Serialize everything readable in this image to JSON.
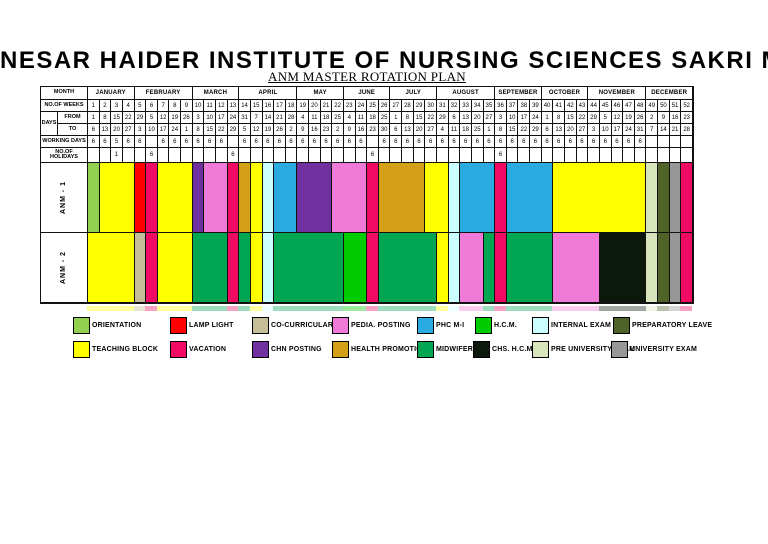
{
  "title": "NESAR HAIDER INSTITUTE OF NURSING SCIENCES SAKRI MADHUBANI",
  "subtitle": "ANM MASTER ROTATION PLAN",
  "table": {
    "row_labels": {
      "month": "MONTH",
      "weeks": "NO.OF WEEKS",
      "days": "DAYS",
      "from": "FROM",
      "to": "TO",
      "working": "WORKING DAYS",
      "holidays": "NO.OF HOLIDAYS"
    },
    "months": [
      {
        "name": "JANUARY",
        "weeks": 4
      },
      {
        "name": "FEBRUARY",
        "weeks": 5
      },
      {
        "name": "MARCH",
        "weeks": 4
      },
      {
        "name": "APRIL",
        "weeks": 5
      },
      {
        "name": "MAY",
        "weeks": 4
      },
      {
        "name": "JUNE",
        "weeks": 4
      },
      {
        "name": "JULY",
        "weeks": 4
      },
      {
        "name": "AUGUST",
        "weeks": 5
      },
      {
        "name": "SEPTEMBER",
        "weeks": 4
      },
      {
        "name": "OCTOBER",
        "weeks": 4
      },
      {
        "name": "NOVEMBER",
        "weeks": 5
      },
      {
        "name": "DECEMBER",
        "weeks": 4
      }
    ],
    "week_numbers": [
      1,
      2,
      3,
      4,
      5,
      6,
      7,
      8,
      9,
      10,
      11,
      12,
      13,
      14,
      15,
      16,
      17,
      18,
      19,
      20,
      21,
      22,
      23,
      24,
      25,
      26,
      27,
      28,
      29,
      30,
      31,
      32,
      33,
      34,
      35,
      36,
      37,
      38,
      39,
      40,
      41,
      42,
      43,
      44,
      45,
      46,
      47,
      48,
      49,
      50,
      51,
      52
    ],
    "from_dates": [
      1,
      8,
      15,
      22,
      29,
      5,
      12,
      19,
      26,
      3,
      10,
      17,
      24,
      31,
      7,
      14,
      21,
      28,
      4,
      11,
      18,
      25,
      4,
      11,
      18,
      25,
      1,
      8,
      15,
      22,
      29,
      6,
      13,
      20,
      27,
      3,
      10,
      17,
      24,
      1,
      8,
      15,
      22,
      29,
      5,
      12,
      19,
      26,
      2,
      9,
      16,
      23
    ],
    "to_dates": [
      6,
      13,
      20,
      27,
      3,
      10,
      17,
      24,
      1,
      8,
      15,
      22,
      29,
      5,
      12,
      19,
      26,
      2,
      9,
      16,
      23,
      2,
      9,
      16,
      23,
      30,
      6,
      13,
      20,
      27,
      4,
      11,
      18,
      25,
      1,
      8,
      15,
      22,
      29,
      6,
      13,
      20,
      27,
      3,
      10,
      17,
      24,
      31,
      7,
      14,
      21,
      28
    ],
    "working_days": [
      "6",
      "6",
      "5",
      "6",
      "6",
      "",
      "6",
      "6",
      "6",
      "6",
      "6",
      "6",
      "",
      "6",
      "6",
      "6",
      "6",
      "6",
      "6",
      "6",
      "6",
      "6",
      "6",
      "6",
      "",
      "6",
      "6",
      "6",
      "6",
      "6",
      "6",
      "6",
      "6",
      "6",
      "6",
      "6",
      "6",
      "6",
      "6",
      "6",
      "6",
      "6",
      "6",
      "6",
      "6",
      "6",
      "6",
      "6",
      "",
      "",
      "",
      ""
    ],
    "holidays": [
      "",
      "",
      "1",
      "",
      "",
      "6",
      "",
      "",
      "",
      "",
      "",
      "",
      "6",
      "",
      "",
      "",
      "",
      "",
      "",
      "",
      "",
      "",
      "",
      "",
      "6",
      "",
      "",
      "",
      "",
      "",
      "",
      "",
      "",
      "",
      "",
      "6",
      "",
      "",
      "",
      "",
      "",
      "",
      "",
      "",
      "",
      "",
      "",
      "",
      "",
      "",
      "",
      ""
    ]
  },
  "activities": {
    "orientation": {
      "label": "ORIENTATION",
      "color": "#92D050"
    },
    "teaching": {
      "label": "TEACHING BLOCK",
      "color": "#FFFF00"
    },
    "lamp": {
      "label": "LAMP LIGHT",
      "color": "#FF0000"
    },
    "vacation": {
      "label": "VACATION",
      "color": "#F00A64"
    },
    "cocurricular": {
      "label": "CO-CURRICULAR",
      "color": "#C4BD97"
    },
    "chn": {
      "label": "CHN POSTING",
      "color": "#7030A0"
    },
    "pedia": {
      "label": "PEDIA. POSTING",
      "color": "#F07AD8"
    },
    "health": {
      "label": "HEALTH PROMOTION",
      "color": "#D4A017"
    },
    "phc": {
      "label": "PHC M-I",
      "color": "#29ABE2"
    },
    "hcm": {
      "label": "H.C.M.",
      "color": "#00CC00"
    },
    "internal": {
      "label": "INTERNAL EXAM",
      "color": "#CCFFFF"
    },
    "midwifery": {
      "label": "MIDWIFERY",
      "color": "#00A651"
    },
    "chs": {
      "label": "CHS. H.C.M.",
      "color": "#0B180B"
    },
    "preuniv": {
      "label": "PRE UNIVERSITY EXAM",
      "color": "#D8E4BC"
    },
    "prep": {
      "label": "PREPARATORY LEAVE",
      "color": "#4F6228"
    },
    "univ": {
      "label": "UNIVERSITY EXAM",
      "color": "#979797"
    }
  },
  "schedule": {
    "rows": [
      {
        "label": "ANM - 1",
        "segments": [
          {
            "a": "orientation",
            "w": 1
          },
          {
            "a": "teaching",
            "w": 3
          },
          {
            "a": "lamp",
            "w": 1
          },
          {
            "a": "vacation",
            "w": 1
          },
          {
            "a": "teaching",
            "w": 3
          },
          {
            "a": "chn",
            "w": 1
          },
          {
            "a": "pedia",
            "w": 2
          },
          {
            "a": "vacation",
            "w": 1
          },
          {
            "a": "health",
            "w": 1
          },
          {
            "a": "teaching",
            "w": 1
          },
          {
            "a": "internal",
            "w": 1
          },
          {
            "a": "phc",
            "w": 2
          },
          {
            "a": "chn",
            "w": 3
          },
          {
            "a": "pedia",
            "w": 3
          },
          {
            "a": "vacation",
            "w": 1
          },
          {
            "a": "health",
            "w": 4
          },
          {
            "a": "teaching",
            "w": 2
          },
          {
            "a": "internal",
            "w": 1
          },
          {
            "a": "phc",
            "w": 3
          },
          {
            "a": "vacation",
            "w": 1
          },
          {
            "a": "phc",
            "w": 4
          },
          {
            "a": "teaching",
            "w": 8
          },
          {
            "a": "preuniv",
            "w": 1
          },
          {
            "a": "prep",
            "w": 1
          },
          {
            "a": "univ",
            "w": 1
          },
          {
            "a": "vacation",
            "w": 1
          }
        ]
      },
      {
        "label": "ANM - 2",
        "segments": [
          {
            "a": "teaching",
            "w": 4
          },
          {
            "a": "cocurricular",
            "w": 1
          },
          {
            "a": "vacation",
            "w": 1
          },
          {
            "a": "teaching",
            "w": 3
          },
          {
            "a": "midwifery",
            "w": 3
          },
          {
            "a": "vacation",
            "w": 1
          },
          {
            "a": "midwifery",
            "w": 1
          },
          {
            "a": "teaching",
            "w": 1
          },
          {
            "a": "internal",
            "w": 1
          },
          {
            "a": "midwifery",
            "w": 6
          },
          {
            "a": "hcm",
            "w": 2
          },
          {
            "a": "vacation",
            "w": 1
          },
          {
            "a": "midwifery",
            "w": 5
          },
          {
            "a": "teaching",
            "w": 1
          },
          {
            "a": "internal",
            "w": 1
          },
          {
            "a": "pedia",
            "w": 2
          },
          {
            "a": "midwifery",
            "w": 1
          },
          {
            "a": "vacation",
            "w": 1
          },
          {
            "a": "midwifery",
            "w": 4
          },
          {
            "a": "pedia",
            "w": 4
          },
          {
            "a": "chs",
            "w": 4
          },
          {
            "a": "preuniv",
            "w": 1
          },
          {
            "a": "prep",
            "w": 1
          },
          {
            "a": "univ",
            "w": 1
          },
          {
            "a": "vacation",
            "w": 1
          }
        ]
      }
    ]
  },
  "legend": {
    "row1": [
      "orientation",
      "lamp",
      "cocurricular",
      "pedia",
      "phc",
      "hcm",
      "internal",
      "prep"
    ],
    "row2": [
      "teaching",
      "vacation",
      "chn",
      "health",
      "midwifery",
      "chs",
      "preuniv",
      "univ"
    ]
  }
}
